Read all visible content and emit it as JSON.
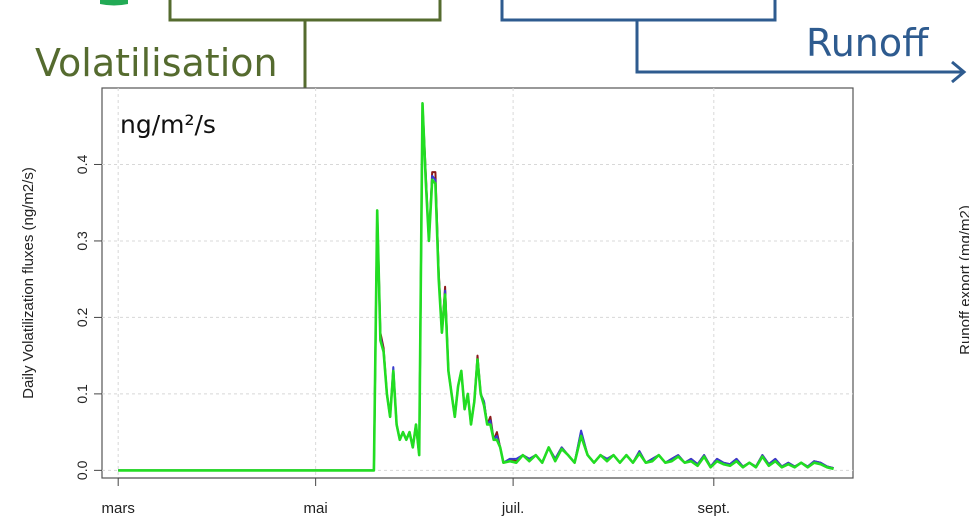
{
  "overlay": {
    "volatilisation_label": "Volatilisation",
    "runoff_label": "Runoff",
    "unit_label": "ng/m²/s",
    "right_panel_ylabel": "Runoff export (mg/m2)",
    "colors": {
      "volatilisation": "#556b2f",
      "runoff": "#2e5b8f"
    }
  },
  "chart_data": {
    "type": "line",
    "title": "",
    "ylabel": "Daily Volatilization fluxes (ng/m2/s)",
    "xlabel": "",
    "xlim": [
      "2013-02-24",
      "2013-10-14"
    ],
    "ylim": [
      -0.01,
      0.5
    ],
    "yticks": [
      0.0,
      0.1,
      0.2,
      0.3,
      0.4
    ],
    "ytick_labels": [
      "0.0",
      "0.1",
      "0.2",
      "0.3",
      "0.4"
    ],
    "xticks": [
      {
        "date": "2013-03-01",
        "label": "mars"
      },
      {
        "date": "2013-05-01",
        "label": "mai"
      },
      {
        "date": "2013-07-01",
        "label": "juil."
      },
      {
        "date": "2013-09-01",
        "label": "sept."
      }
    ],
    "grid": true,
    "series": [
      {
        "color": "#8b1a1a",
        "x": [
          "2013-03-01",
          "2013-05-19",
          "2013-05-20",
          "2013-05-21",
          "2013-05-22",
          "2013-05-23",
          "2013-05-24",
          "2013-05-25",
          "2013-05-26",
          "2013-05-27",
          "2013-05-28",
          "2013-05-29",
          "2013-05-30",
          "2013-05-31",
          "2013-06-01",
          "2013-06-02",
          "2013-06-03",
          "2013-06-04",
          "2013-06-05",
          "2013-06-06",
          "2013-06-07",
          "2013-06-08",
          "2013-06-09",
          "2013-06-10",
          "2013-06-11",
          "2013-06-12",
          "2013-06-13",
          "2013-06-14",
          "2013-06-15",
          "2013-06-16",
          "2013-06-17",
          "2013-06-18",
          "2013-06-19",
          "2013-06-20",
          "2013-06-21",
          "2013-06-22",
          "2013-06-23",
          "2013-06-24",
          "2013-06-25",
          "2013-06-26",
          "2013-06-27",
          "2013-06-28",
          "2013-06-30",
          "2013-07-02",
          "2013-07-04",
          "2013-07-06",
          "2013-07-08",
          "2013-07-10",
          "2013-07-12",
          "2013-07-14",
          "2013-07-16",
          "2013-07-18",
          "2013-07-20",
          "2013-07-22",
          "2013-07-24",
          "2013-07-26",
          "2013-07-28",
          "2013-07-30",
          "2013-08-01",
          "2013-08-03",
          "2013-08-05",
          "2013-08-07",
          "2013-08-09",
          "2013-08-11",
          "2013-08-13",
          "2013-08-15",
          "2013-08-17",
          "2013-08-19",
          "2013-08-21",
          "2013-08-23",
          "2013-08-25",
          "2013-08-27",
          "2013-08-29",
          "2013-08-31",
          "2013-09-02",
          "2013-09-04",
          "2013-09-06",
          "2013-09-08",
          "2013-09-10",
          "2013-09-12",
          "2013-09-14",
          "2013-09-16",
          "2013-09-18",
          "2013-09-20",
          "2013-09-22",
          "2013-09-24",
          "2013-09-26",
          "2013-09-28",
          "2013-09-30",
          "2013-10-02",
          "2013-10-04",
          "2013-10-06",
          "2013-10-08"
        ],
        "y": [
          0.0,
          0.0,
          0.34,
          0.18,
          0.16,
          0.1,
          0.07,
          0.13,
          0.06,
          0.04,
          0.05,
          0.04,
          0.05,
          0.03,
          0.06,
          0.02,
          0.48,
          0.39,
          0.3,
          0.39,
          0.39,
          0.26,
          0.18,
          0.24,
          0.13,
          0.1,
          0.07,
          0.11,
          0.13,
          0.08,
          0.1,
          0.06,
          0.09,
          0.15,
          0.1,
          0.09,
          0.06,
          0.07,
          0.04,
          0.05,
          0.03,
          0.01,
          0.015,
          0.012,
          0.02,
          0.015,
          0.02,
          0.01,
          0.03,
          0.015,
          0.03,
          0.02,
          0.01,
          0.05,
          0.02,
          0.01,
          0.02,
          0.015,
          0.02,
          0.01,
          0.02,
          0.01,
          0.025,
          0.01,
          0.015,
          0.02,
          0.01,
          0.015,
          0.02,
          0.01,
          0.015,
          0.008,
          0.02,
          0.005,
          0.015,
          0.01,
          0.008,
          0.015,
          0.005,
          0.01,
          0.005,
          0.02,
          0.008,
          0.015,
          0.005,
          0.01,
          0.005,
          0.01,
          0.005,
          0.012,
          0.01,
          0.005,
          0.003
        ]
      },
      {
        "color": "#3a3ad0",
        "x": [
          "2013-03-01",
          "2013-05-19",
          "2013-05-20",
          "2013-05-21",
          "2013-05-22",
          "2013-05-23",
          "2013-05-24",
          "2013-05-25",
          "2013-05-26",
          "2013-05-27",
          "2013-05-28",
          "2013-05-29",
          "2013-05-30",
          "2013-05-31",
          "2013-06-01",
          "2013-06-02",
          "2013-06-03",
          "2013-06-04",
          "2013-06-05",
          "2013-06-06",
          "2013-06-07",
          "2013-06-08",
          "2013-06-09",
          "2013-06-10",
          "2013-06-11",
          "2013-06-12",
          "2013-06-13",
          "2013-06-14",
          "2013-06-15",
          "2013-06-16",
          "2013-06-17",
          "2013-06-18",
          "2013-06-19",
          "2013-06-20",
          "2013-06-21",
          "2013-06-22",
          "2013-06-23",
          "2013-06-24",
          "2013-06-25",
          "2013-06-26",
          "2013-06-27",
          "2013-06-28",
          "2013-06-30",
          "2013-07-02",
          "2013-07-04",
          "2013-07-06",
          "2013-07-08",
          "2013-07-10",
          "2013-07-12",
          "2013-07-14",
          "2013-07-16",
          "2013-07-18",
          "2013-07-20",
          "2013-07-22",
          "2013-07-24",
          "2013-07-26",
          "2013-07-28",
          "2013-07-30",
          "2013-08-01",
          "2013-08-03",
          "2013-08-05",
          "2013-08-07",
          "2013-08-09",
          "2013-08-11",
          "2013-08-13",
          "2013-08-15",
          "2013-08-17",
          "2013-08-19",
          "2013-08-21",
          "2013-08-23",
          "2013-08-25",
          "2013-08-27",
          "2013-08-29",
          "2013-08-31",
          "2013-09-02",
          "2013-09-04",
          "2013-09-06",
          "2013-09-08",
          "2013-09-10",
          "2013-09-12",
          "2013-09-14",
          "2013-09-16",
          "2013-09-18",
          "2013-09-20",
          "2013-09-22",
          "2013-09-24",
          "2013-09-26",
          "2013-09-28",
          "2013-09-30",
          "2013-10-02",
          "2013-10-04",
          "2013-10-06",
          "2013-10-08"
        ],
        "y": [
          0.0,
          0.0,
          0.335,
          0.175,
          0.155,
          0.1,
          0.07,
          0.135,
          0.06,
          0.04,
          0.05,
          0.04,
          0.05,
          0.03,
          0.06,
          0.02,
          0.475,
          0.385,
          0.3,
          0.385,
          0.38,
          0.255,
          0.18,
          0.235,
          0.13,
          0.1,
          0.07,
          0.11,
          0.13,
          0.08,
          0.1,
          0.06,
          0.09,
          0.145,
          0.1,
          0.09,
          0.06,
          0.065,
          0.04,
          0.045,
          0.03,
          0.01,
          0.015,
          0.015,
          0.02,
          0.015,
          0.02,
          0.01,
          0.03,
          0.015,
          0.03,
          0.02,
          0.01,
          0.052,
          0.02,
          0.01,
          0.02,
          0.015,
          0.02,
          0.01,
          0.02,
          0.01,
          0.025,
          0.01,
          0.015,
          0.02,
          0.01,
          0.015,
          0.02,
          0.01,
          0.015,
          0.008,
          0.02,
          0.005,
          0.015,
          0.01,
          0.008,
          0.015,
          0.005,
          0.01,
          0.005,
          0.02,
          0.008,
          0.015,
          0.005,
          0.01,
          0.005,
          0.01,
          0.005,
          0.012,
          0.01,
          0.005,
          0.003
        ]
      },
      {
        "color": "#22dd22",
        "x": [
          "2013-03-01",
          "2013-05-19",
          "2013-05-20",
          "2013-05-21",
          "2013-05-22",
          "2013-05-23",
          "2013-05-24",
          "2013-05-25",
          "2013-05-26",
          "2013-05-27",
          "2013-05-28",
          "2013-05-29",
          "2013-05-30",
          "2013-05-31",
          "2013-06-01",
          "2013-06-02",
          "2013-06-03",
          "2013-06-04",
          "2013-06-05",
          "2013-06-06",
          "2013-06-07",
          "2013-06-08",
          "2013-06-09",
          "2013-06-10",
          "2013-06-11",
          "2013-06-12",
          "2013-06-13",
          "2013-06-14",
          "2013-06-15",
          "2013-06-16",
          "2013-06-17",
          "2013-06-18",
          "2013-06-19",
          "2013-06-20",
          "2013-06-21",
          "2013-06-22",
          "2013-06-23",
          "2013-06-24",
          "2013-06-25",
          "2013-06-26",
          "2013-06-27",
          "2013-06-28",
          "2013-06-30",
          "2013-07-02",
          "2013-07-04",
          "2013-07-06",
          "2013-07-08",
          "2013-07-10",
          "2013-07-12",
          "2013-07-14",
          "2013-07-16",
          "2013-07-18",
          "2013-07-20",
          "2013-07-22",
          "2013-07-24",
          "2013-07-26",
          "2013-07-28",
          "2013-07-30",
          "2013-08-01",
          "2013-08-03",
          "2013-08-05",
          "2013-08-07",
          "2013-08-09",
          "2013-08-11",
          "2013-08-13",
          "2013-08-15",
          "2013-08-17",
          "2013-08-19",
          "2013-08-21",
          "2013-08-23",
          "2013-08-25",
          "2013-08-27",
          "2013-08-29",
          "2013-08-31",
          "2013-09-02",
          "2013-09-04",
          "2013-09-06",
          "2013-09-08",
          "2013-09-10",
          "2013-09-12",
          "2013-09-14",
          "2013-09-16",
          "2013-09-18",
          "2013-09-20",
          "2013-09-22",
          "2013-09-24",
          "2013-09-26",
          "2013-09-28",
          "2013-09-30",
          "2013-10-02",
          "2013-10-04",
          "2013-10-06",
          "2013-10-08"
        ],
        "y": [
          0.0,
          0.0,
          0.34,
          0.17,
          0.155,
          0.1,
          0.07,
          0.13,
          0.06,
          0.04,
          0.05,
          0.04,
          0.05,
          0.03,
          0.06,
          0.02,
          0.48,
          0.38,
          0.3,
          0.38,
          0.375,
          0.25,
          0.18,
          0.23,
          0.13,
          0.1,
          0.07,
          0.11,
          0.13,
          0.08,
          0.1,
          0.06,
          0.09,
          0.145,
          0.1,
          0.085,
          0.06,
          0.06,
          0.04,
          0.04,
          0.03,
          0.01,
          0.012,
          0.01,
          0.02,
          0.012,
          0.02,
          0.01,
          0.03,
          0.012,
          0.028,
          0.02,
          0.01,
          0.045,
          0.02,
          0.01,
          0.02,
          0.012,
          0.02,
          0.01,
          0.02,
          0.01,
          0.022,
          0.01,
          0.012,
          0.02,
          0.01,
          0.012,
          0.018,
          0.01,
          0.012,
          0.006,
          0.018,
          0.004,
          0.012,
          0.008,
          0.006,
          0.012,
          0.004,
          0.01,
          0.004,
          0.018,
          0.006,
          0.012,
          0.004,
          0.008,
          0.004,
          0.01,
          0.004,
          0.01,
          0.008,
          0.004,
          0.002
        ]
      }
    ]
  }
}
